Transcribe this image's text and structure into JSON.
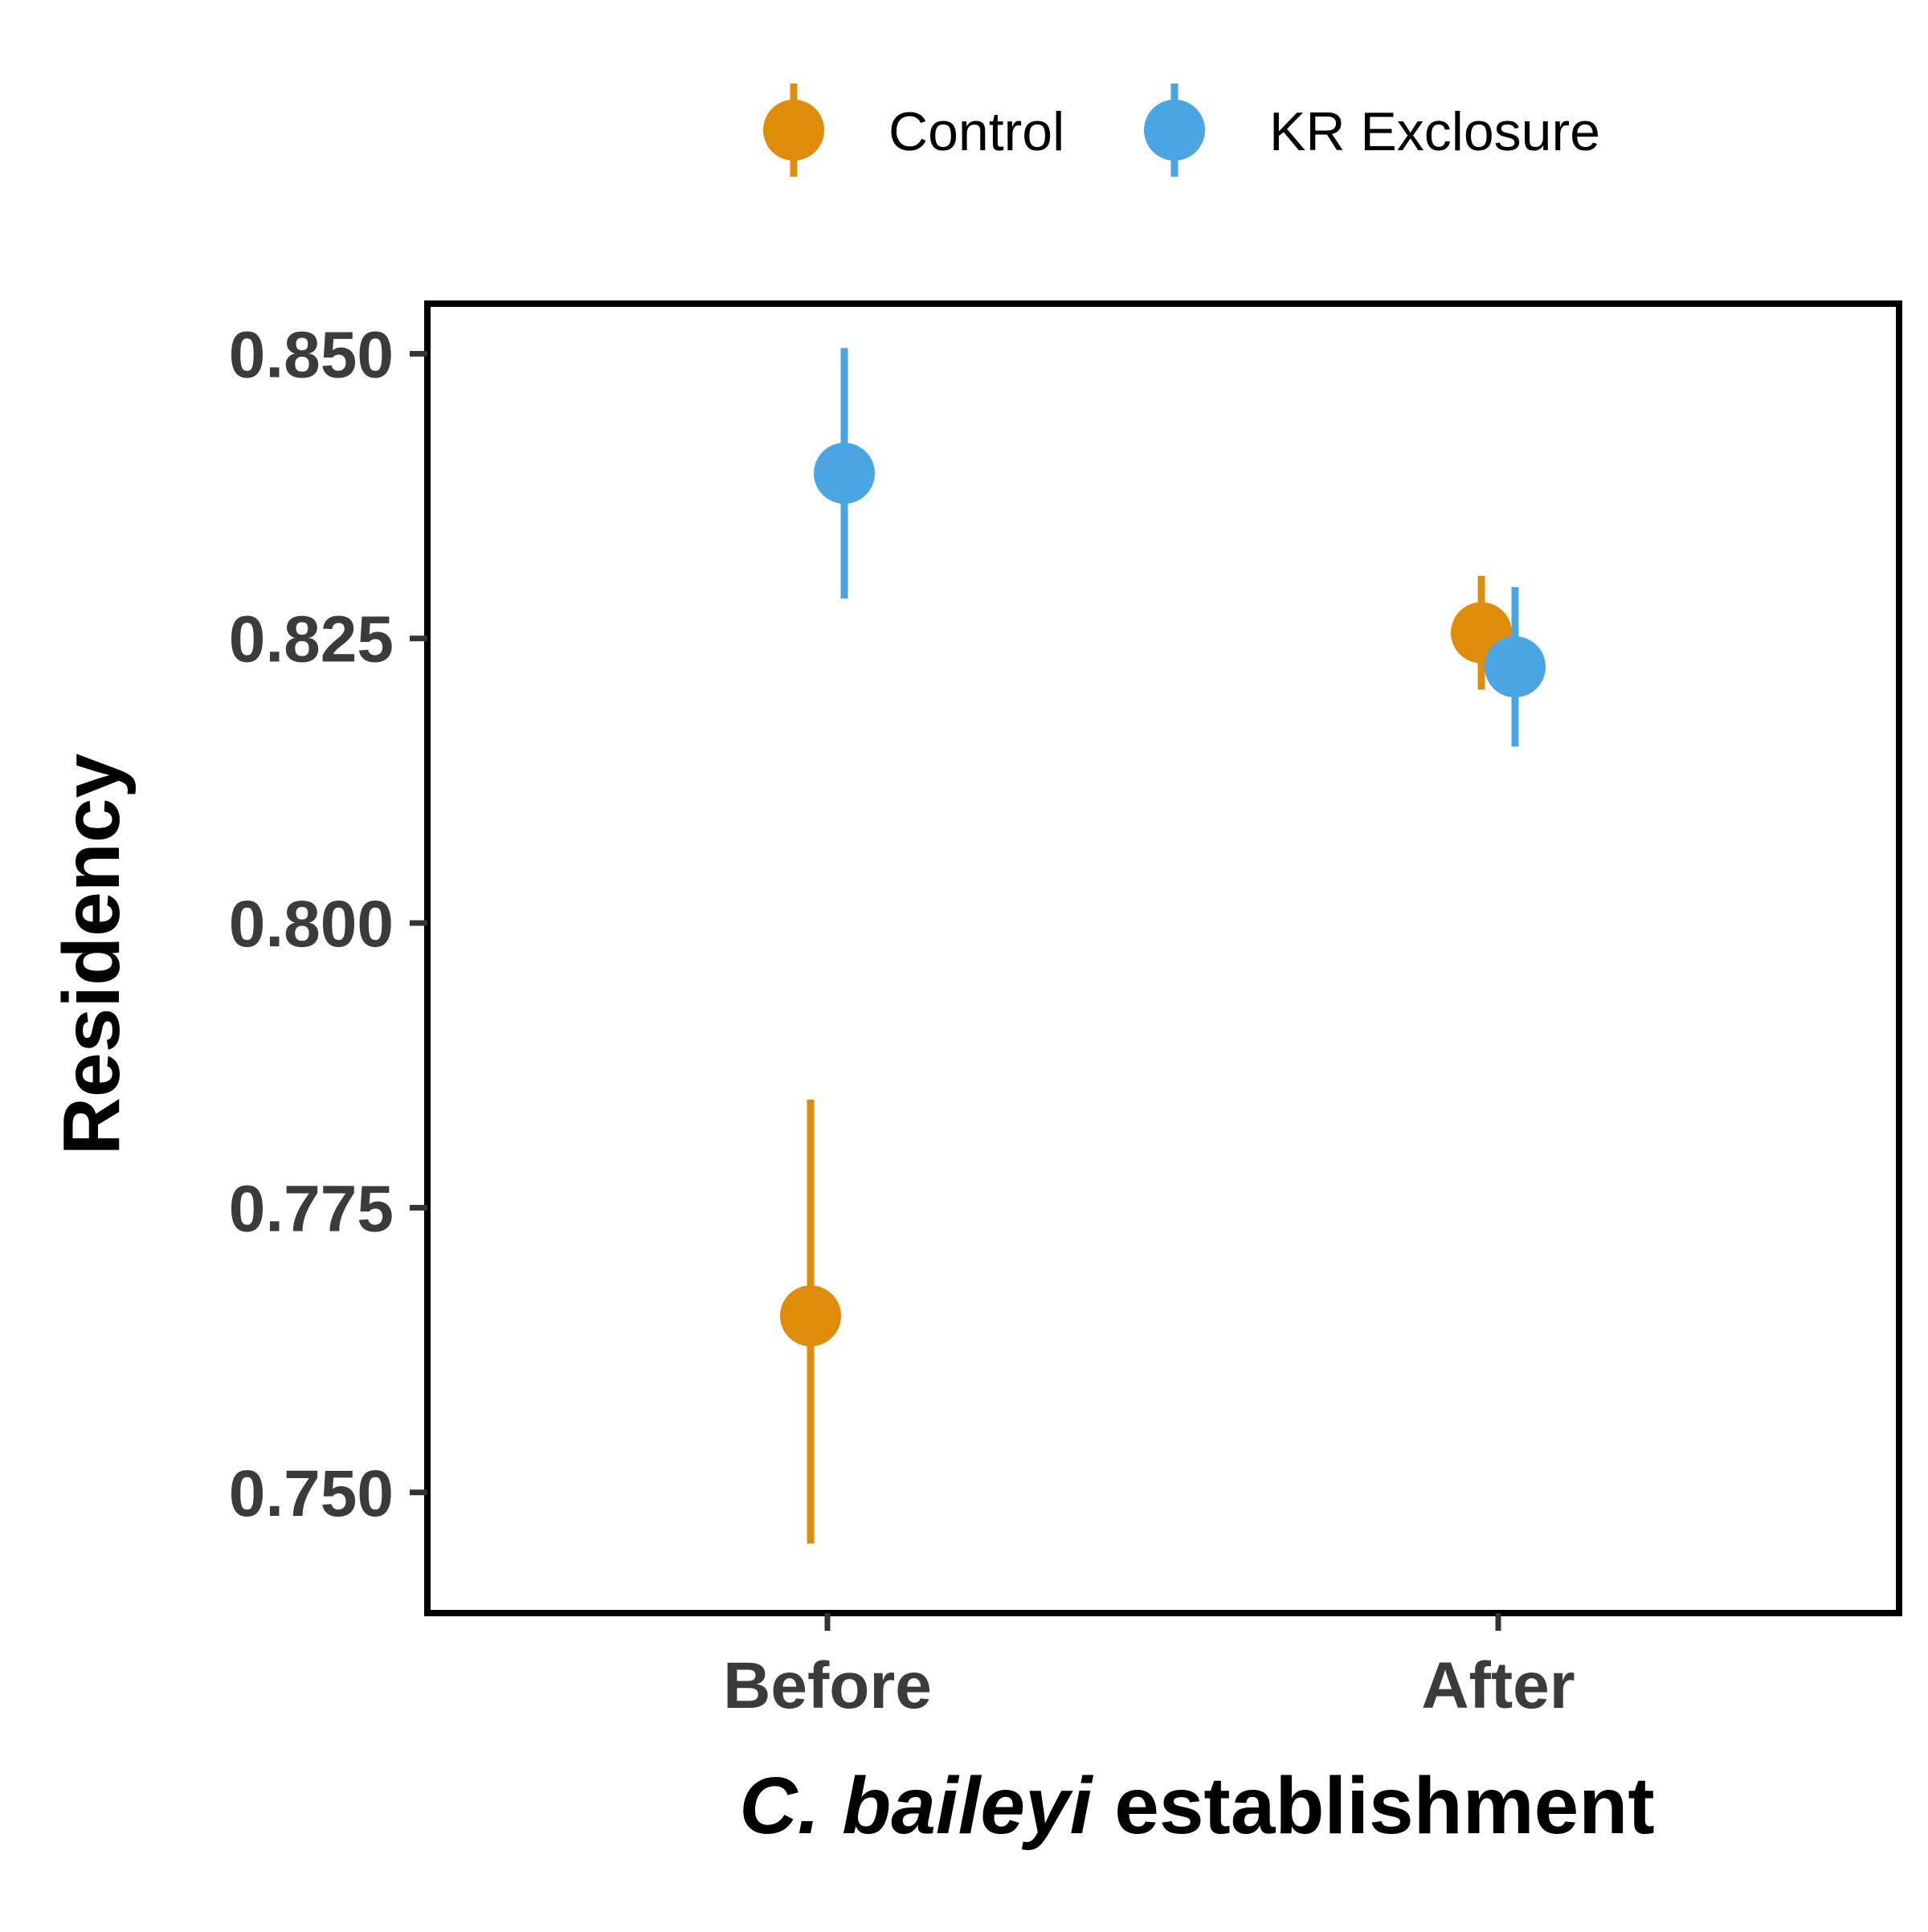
{
  "chart_data": {
    "type": "pointrange",
    "x_categories": [
      "Before",
      "After"
    ],
    "xlabel": {
      "italic_part": "C. baileyi",
      "regular_part": " establishment"
    },
    "ylabel": "Residency",
    "ylim": [
      0.7394,
      0.8544
    ],
    "y_ticks": [
      0.75,
      0.775,
      0.8,
      0.825,
      0.85
    ],
    "y_tick_labels": [
      "0.750",
      "0.775",
      "0.800",
      "0.825",
      "0.850"
    ],
    "grid": false,
    "legend_position": "top",
    "series": [
      {
        "name": "Control",
        "color": "#E08C0B",
        "points": [
          {
            "x": "Before",
            "y": 0.7655,
            "lower": 0.7455,
            "upper": 0.7845
          },
          {
            "x": "After",
            "y": 0.8255,
            "lower": 0.8205,
            "upper": 0.8305
          }
        ]
      },
      {
        "name": "KR Exclosure",
        "color": "#4BA5E2",
        "points": [
          {
            "x": "Before",
            "y": 0.8395,
            "lower": 0.8285,
            "upper": 0.8505
          },
          {
            "x": "After",
            "y": 0.8225,
            "lower": 0.8155,
            "upper": 0.8295
          }
        ]
      }
    ]
  }
}
